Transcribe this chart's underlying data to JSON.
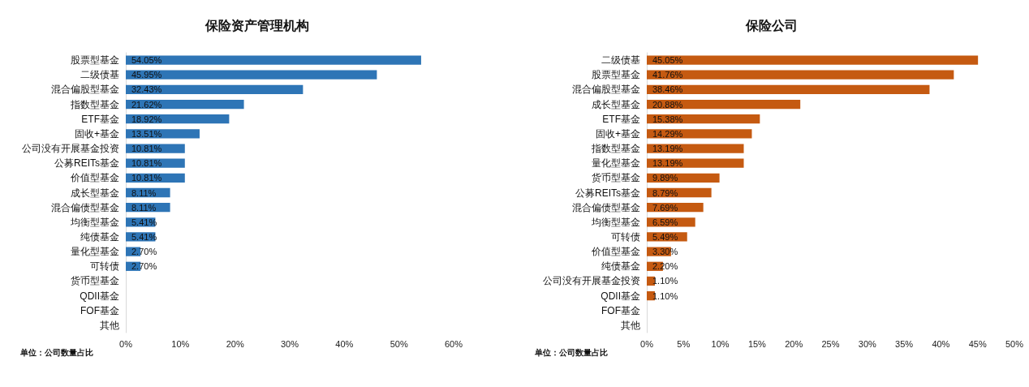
{
  "chart_data": [
    {
      "type": "bar",
      "orientation": "horizontal",
      "title": "保险资产管理机构",
      "annotations": [
        "单位：公司数量占比"
      ],
      "categories": [
        "股票型基金",
        "二级债基",
        "混合偏股型基金",
        "指数型基金",
        "ETF基金",
        "固收+基金",
        "公司没有开展基金投资",
        "公募REITs基金",
        "价值型基金",
        "成长型基金",
        "混合偏债型基金",
        "均衡型基金",
        "纯债基金",
        "量化型基金",
        "可转债",
        "货币型基金",
        "QDII基金",
        "FOF基金",
        "其他"
      ],
      "values": [
        54.05,
        45.95,
        32.43,
        21.62,
        18.92,
        13.51,
        10.81,
        10.81,
        10.81,
        8.11,
        8.11,
        5.41,
        5.41,
        2.7,
        2.7,
        0,
        0,
        0,
        0
      ],
      "value_labels": [
        "54.05%",
        "45.95%",
        "32.43%",
        "21.62%",
        "18.92%",
        "13.51%",
        "10.81%",
        "10.81%",
        "10.81%",
        "8.11%",
        "8.11%",
        "5.41%",
        "5.41%",
        "2.70%",
        "2.70%",
        null,
        null,
        null,
        null
      ],
      "color": "#2e75b6",
      "xlim": [
        0,
        60
      ],
      "xticks": [
        {
          "value": 0,
          "label": "0%"
        },
        {
          "value": 10,
          "label": "10%"
        },
        {
          "value": 20,
          "label": "20%"
        },
        {
          "value": 30,
          "label": "30%"
        },
        {
          "value": 40,
          "label": "40%"
        },
        {
          "value": 50,
          "label": "50%"
        },
        {
          "value": 60,
          "label": "60%"
        }
      ],
      "grid": false
    },
    {
      "type": "bar",
      "orientation": "horizontal",
      "title": "保险公司",
      "annotations": [
        "单位：公司数量占比"
      ],
      "categories": [
        "二级债基",
        "股票型基金",
        "混合偏股型基金",
        "成长型基金",
        "ETF基金",
        "固收+基金",
        "指数型基金",
        "量化型基金",
        "货币型基金",
        "公募REITs基金",
        "混合偏债型基金",
        "均衡型基金",
        "可转债",
        "价值型基金",
        "纯债基金",
        "公司没有开展基金投资",
        "QDII基金",
        "FOF基金",
        "其他"
      ],
      "values": [
        45.05,
        41.76,
        38.46,
        20.88,
        15.38,
        14.29,
        13.19,
        13.19,
        9.89,
        8.79,
        7.69,
        6.59,
        5.49,
        3.3,
        2.2,
        1.1,
        1.1,
        0,
        0
      ],
      "value_labels": [
        "45.05%",
        "41.76%",
        "38.46%",
        "20.88%",
        "15.38%",
        "14.29%",
        "13.19%",
        "13.19%",
        "9.89%",
        "8.79%",
        "7.69%",
        "6.59%",
        "5.49%",
        "3.30%",
        "2.20%",
        "1.10%",
        "1.10%",
        null,
        null
      ],
      "color": "#c55a11",
      "xlim": [
        0,
        50
      ],
      "xticks": [
        {
          "value": 0,
          "label": "0%"
        },
        {
          "value": 5,
          "label": "5%"
        },
        {
          "value": 10,
          "label": "10%"
        },
        {
          "value": 15,
          "label": "15%"
        },
        {
          "value": 20,
          "label": "20%"
        },
        {
          "value": 25,
          "label": "25%"
        },
        {
          "value": 30,
          "label": "30%"
        },
        {
          "value": 35,
          "label": "35%"
        },
        {
          "value": 40,
          "label": "40%"
        },
        {
          "value": 45,
          "label": "45%"
        },
        {
          "value": 50,
          "label": "50%"
        }
      ],
      "grid": false
    }
  ]
}
